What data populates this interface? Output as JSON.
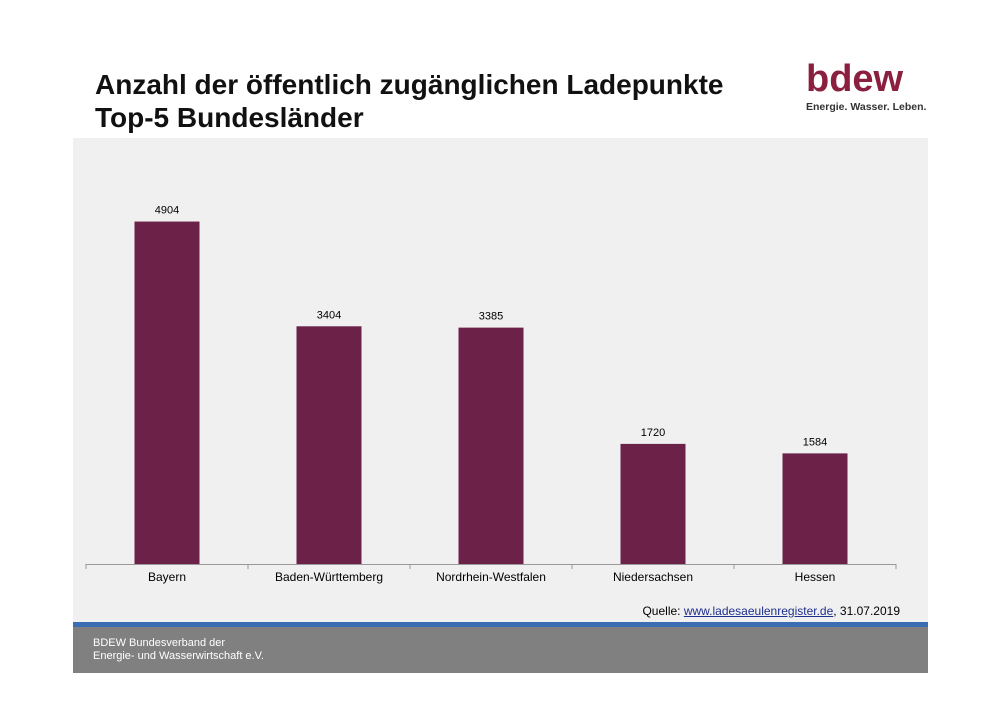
{
  "title": {
    "line1": "Anzahl der öffentlich zugänglichen Ladepunkte",
    "line2": "Top-5 Bundesländer"
  },
  "logo": {
    "word": "bdew",
    "slogan": "Energie. Wasser. Leben."
  },
  "source": {
    "prefix": "Quelle: ",
    "link": "www.ladesaeulenregister.de",
    "date": ", 31.07.2019"
  },
  "footer": {
    "line1": "BDEW Bundesverband der",
    "line2": "Energie- und Wasserwirtschaft e.V."
  },
  "colors": {
    "bar": "#6b2148",
    "brand": "#8b1f3f",
    "accent_blue": "#3b6db3",
    "footer_bg": "#808080"
  },
  "chart_data": {
    "type": "bar",
    "title": "Anzahl der öffentlich zugänglichen Ladepunkte Top-5 Bundesländer",
    "categories": [
      "Bayern",
      "Baden-Württemberg",
      "Nordrhein-Westfalen",
      "Niedersachsen",
      "Hessen"
    ],
    "values": [
      4904,
      3404,
      3385,
      1720,
      1584
    ],
    "xlabel": "",
    "ylabel": "",
    "ylim": [
      0,
      5900
    ],
    "grid": false,
    "legend": "none"
  }
}
